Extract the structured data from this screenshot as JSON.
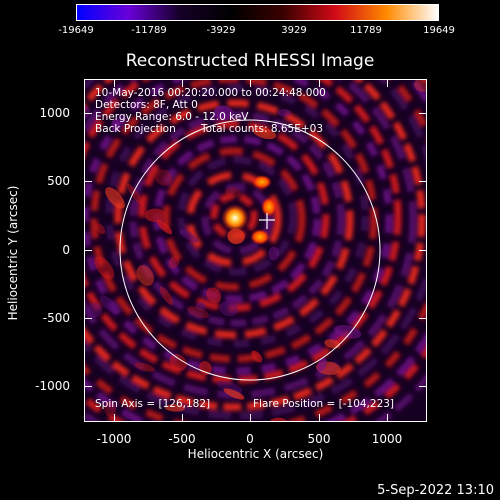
{
  "colorbar": {
    "ticks": [
      "-19649",
      "-11789",
      "-3929",
      "3929",
      "11789",
      "19649"
    ],
    "colors": [
      "#0000ff",
      "#6a00d8",
      "#150027",
      "#000000",
      "#3a0000",
      "#d10a17",
      "#ff8a00",
      "#ffffff"
    ]
  },
  "title": "Reconstructed RHESSI Image",
  "info": {
    "time_range": "10-May-2016 00:20:20.000 to 00:24:48.000",
    "detectors": "Detectors: 8F, Att 0",
    "energy": "Energy Range: 6.0 - 12.0 keV",
    "method": "Back Projection",
    "counts": "Total counts: 8.65E+03",
    "spin_axis": "Spin Axis = [126,182]",
    "flare_position": "Flare Position = [-104,223]"
  },
  "axes": {
    "xlabel": "Heliocentric X (arcsec)",
    "ylabel": "Heliocentric Y (arcsec)",
    "xticks": [
      "-1000",
      "-500",
      "0",
      "500",
      "1000"
    ],
    "yticks": [
      "1000",
      "500",
      "0",
      "-500",
      "-1000"
    ]
  },
  "footer": {
    "date": "5-Sep-2022 13:10"
  }
}
